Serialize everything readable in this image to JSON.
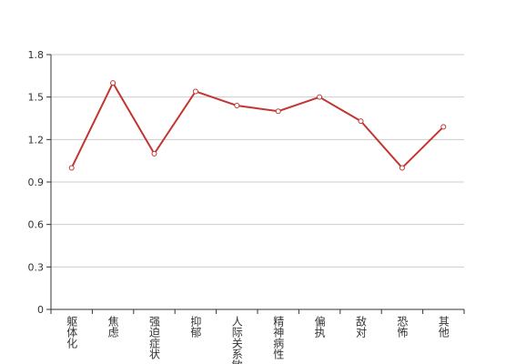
{
  "chart_data": {
    "type": "line",
    "categories": [
      "躯体化",
      "焦虑",
      "强迫症状",
      "抑郁",
      "人际关系敏感",
      "精神病性",
      "偏执",
      "敌对",
      "恐怖",
      "其他"
    ],
    "values": [
      1.0,
      1.6,
      1.1,
      1.54,
      1.44,
      1.4,
      1.5,
      1.33,
      1.0,
      1.29
    ],
    "color": "#c23531",
    "ylim": [
      0,
      1.8
    ],
    "yticks": [
      0,
      0.3,
      0.6,
      0.9,
      1.2,
      1.5,
      1.8
    ],
    "grid": true
  }
}
